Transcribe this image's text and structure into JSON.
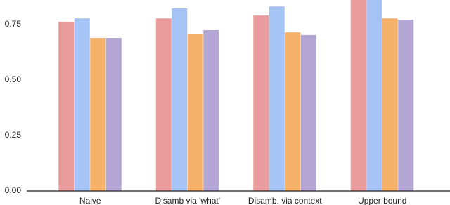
{
  "chart_data": {
    "type": "bar",
    "categories": [
      "Naive",
      "Disamb via 'what'",
      "Disamb. via context",
      "Upper bound"
    ],
    "series": [
      {
        "color": "#e99c9b",
        "values": [
          0.763,
          0.778,
          0.791,
          0.88
        ]
      },
      {
        "color": "#a5c3f4",
        "values": [
          0.778,
          0.823,
          0.832,
          0.9
        ]
      },
      {
        "color": "#f6b26b",
        "values": [
          0.69,
          0.709,
          0.715,
          0.778
        ]
      },
      {
        "color": "#b4a7d6",
        "values": [
          0.69,
          0.725,
          0.703,
          0.772
        ]
      }
    ],
    "ylim": [
      0,
      0.861
    ],
    "yticks": [
      {
        "value": 0,
        "label": "0.00"
      },
      {
        "value": 0.25,
        "label": "0.25"
      },
      {
        "value": 0.5,
        "label": "0.50"
      },
      {
        "value": 0.75,
        "label": "0.75"
      }
    ],
    "grid": false
  }
}
